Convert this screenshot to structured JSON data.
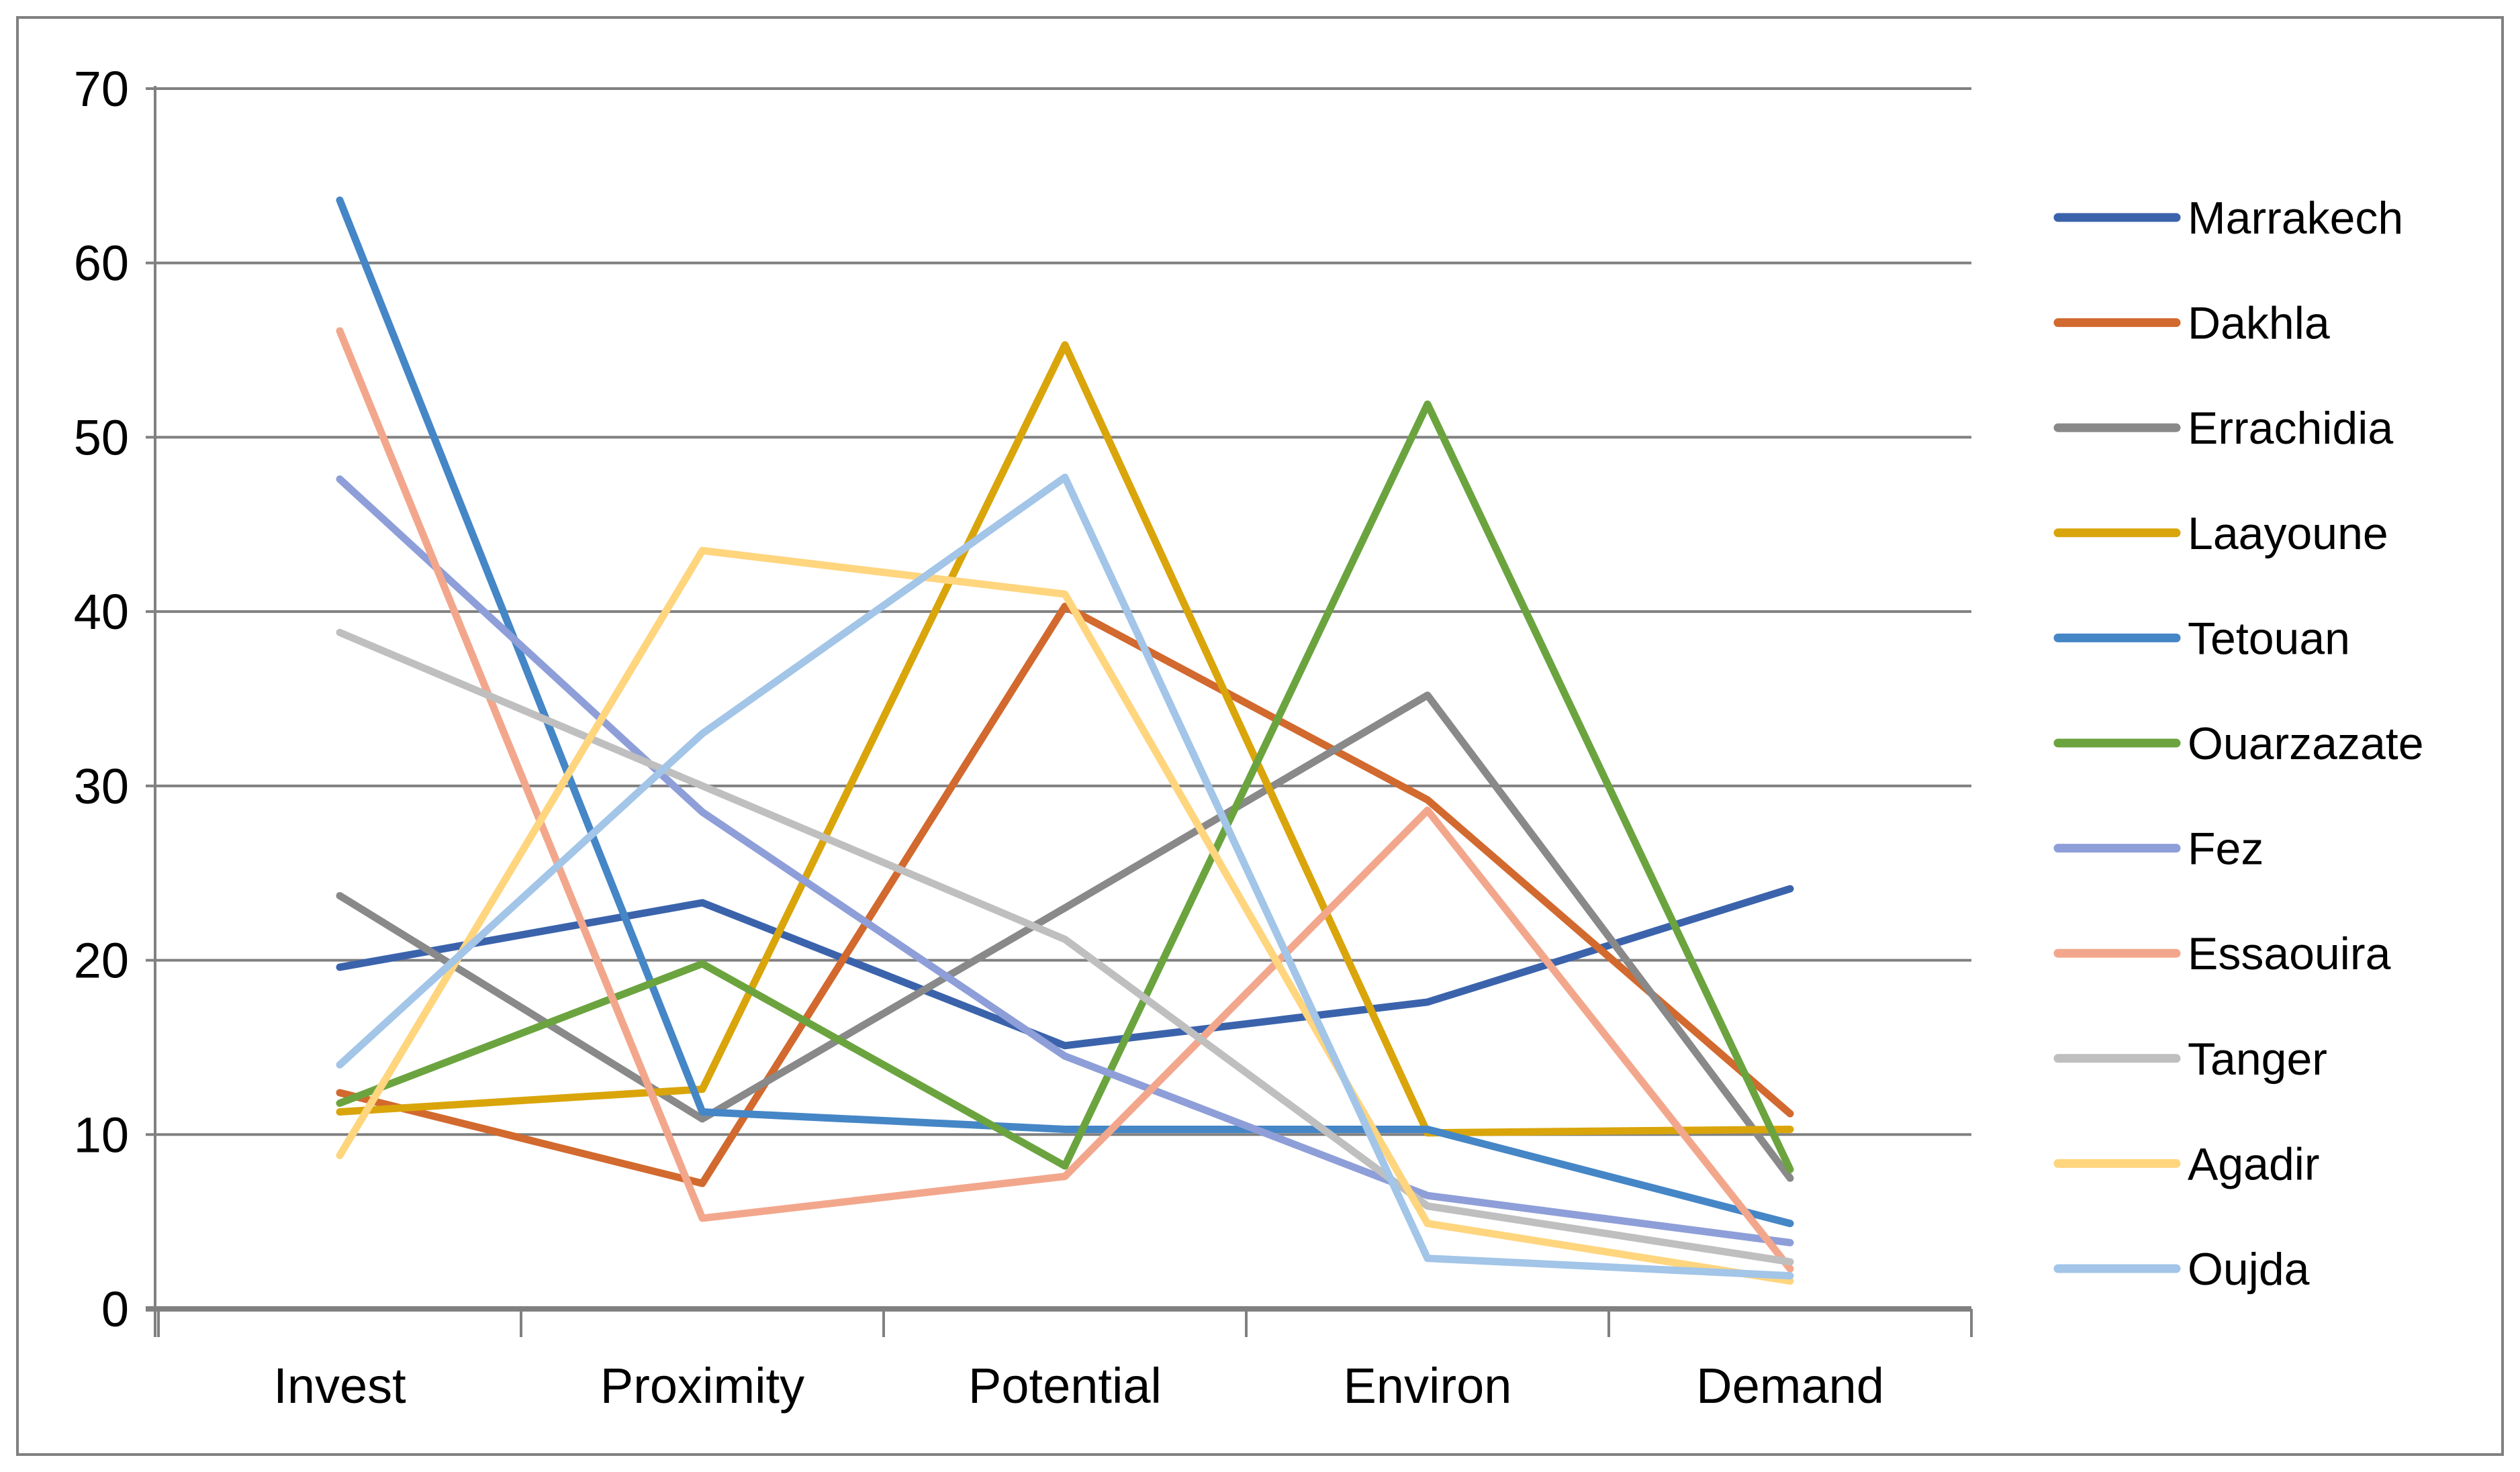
{
  "chart_data": {
    "type": "line",
    "title": "",
    "xlabel": "",
    "ylabel": "",
    "categories": [
      "Invest",
      "Proximity",
      "Potential",
      "Environ",
      "Demand"
    ],
    "series": [
      {
        "name": "Marrakech",
        "color": "#3B63AC",
        "values": [
          19.6,
          23.3,
          15.1,
          17.6,
          24.1
        ]
      },
      {
        "name": "Dakhla",
        "color": "#D2692E",
        "values": [
          12.4,
          7.2,
          40.3,
          29.2,
          11.2
        ]
      },
      {
        "name": "Errachidia",
        "color": "#898989",
        "values": [
          23.7,
          10.9,
          23.0,
          35.2,
          7.5
        ]
      },
      {
        "name": "Laayoune",
        "color": "#D9A50B",
        "values": [
          11.3,
          12.6,
          55.3,
          10.1,
          10.3
        ]
      },
      {
        "name": "Tetouan",
        "color": "#4586C6",
        "values": [
          63.6,
          11.3,
          10.3,
          10.3,
          4.9
        ]
      },
      {
        "name": "Ouarzazate",
        "color": "#6BA43F",
        "values": [
          11.8,
          19.8,
          8.2,
          51.9,
          8.0
        ]
      },
      {
        "name": "Fez",
        "color": "#8E9ED8",
        "values": [
          47.6,
          28.5,
          14.5,
          6.5,
          3.8
        ]
      },
      {
        "name": "Essaouira",
        "color": "#F2A78C",
        "values": [
          56.1,
          5.2,
          7.6,
          28.6,
          2.3
        ]
      },
      {
        "name": "Tanger",
        "color": "#BFBFBF",
        "values": [
          38.8,
          30.0,
          21.2,
          5.9,
          2.7
        ]
      },
      {
        "name": "Agadir",
        "color": "#FFD57E",
        "values": [
          8.8,
          43.5,
          41.0,
          4.9,
          1.6
        ]
      },
      {
        "name": "Oujda",
        "color": "#A2C5E8",
        "values": [
          14.0,
          33.0,
          47.7,
          2.9,
          1.9
        ]
      }
    ],
    "y_ticks": [
      0,
      10,
      20,
      30,
      40,
      50,
      60,
      70
    ],
    "ylim": [
      0,
      70
    ],
    "grid": "horizontal",
    "legend_position": "right",
    "axis_color": "#808080",
    "text_color": "#000000",
    "background": "#FFFFFF"
  }
}
